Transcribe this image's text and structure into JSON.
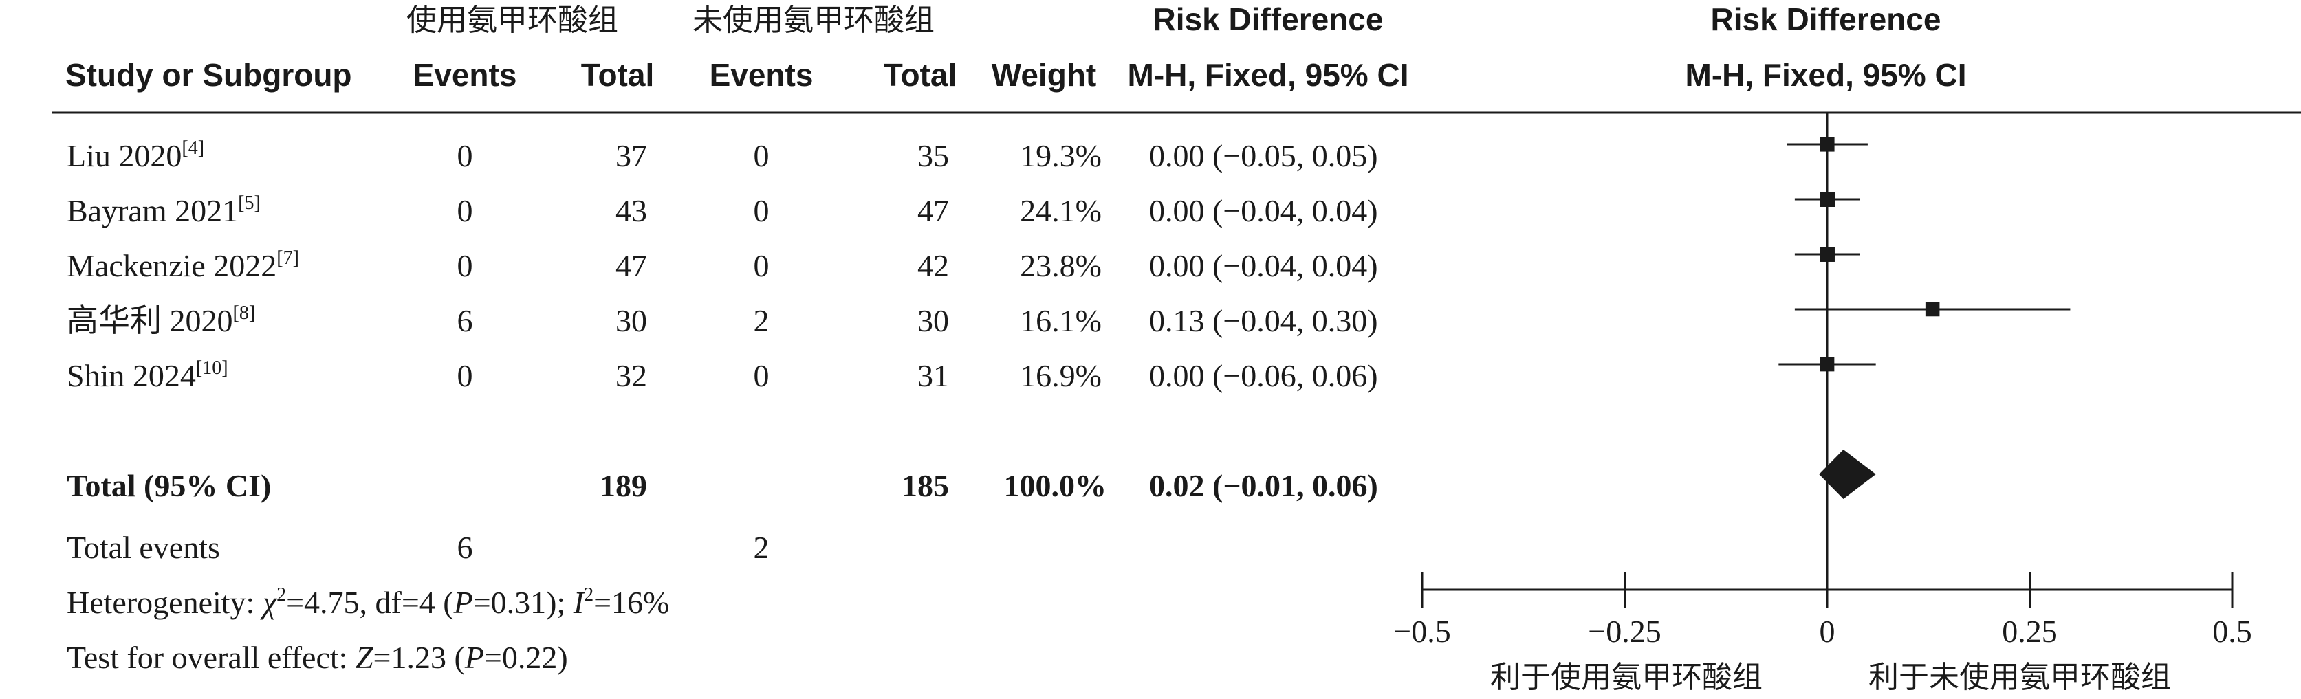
{
  "header": {
    "group1": "使用氨甲环酸组",
    "group2": "未使用氨甲环酸组",
    "effect_title": "Risk Difference",
    "effect_method": "M-H, Fixed, 95% CI",
    "plot_title": "Risk Difference",
    "plot_method": "M-H, Fixed, 95% CI",
    "col_study": "Study or Subgroup",
    "col_events1": "Events",
    "col_total1": "Total",
    "col_events2": "Events",
    "col_total2": "Total",
    "col_weight": "Weight"
  },
  "chart_data": {
    "type": "forest",
    "studies": [
      {
        "name": "Liu 2020",
        "ref": "[4]",
        "events1": "0",
        "total1": "37",
        "events2": "0",
        "total2": "35",
        "weight": "19.3%",
        "ci_text": "0.00 (−0.05, 0.05)",
        "rd": 0.0,
        "lo": -0.05,
        "hi": 0.05,
        "w": 19.3
      },
      {
        "name": "Bayram 2021",
        "ref": "[5]",
        "events1": "0",
        "total1": "43",
        "events2": "0",
        "total2": "47",
        "weight": "24.1%",
        "ci_text": "0.00 (−0.04, 0.04)",
        "rd": 0.0,
        "lo": -0.04,
        "hi": 0.04,
        "w": 24.1
      },
      {
        "name": "Mackenzie 2022",
        "ref": "[7]",
        "events1": "0",
        "total1": "47",
        "events2": "0",
        "total2": "42",
        "weight": "23.8%",
        "ci_text": "0.00 (−0.04, 0.04)",
        "rd": 0.0,
        "lo": -0.04,
        "hi": 0.04,
        "w": 23.8
      },
      {
        "name": "高华利 2020",
        "ref": "[8]",
        "events1": "6",
        "total1": "30",
        "events2": "2",
        "total2": "30",
        "weight": "16.1%",
        "ci_text": "0.13 (−0.04, 0.30)",
        "rd": 0.13,
        "lo": -0.04,
        "hi": 0.3,
        "w": 16.1
      },
      {
        "name": "Shin 2024",
        "ref": "[10]",
        "events1": "0",
        "total1": "32",
        "events2": "0",
        "total2": "31",
        "weight": "16.9%",
        "ci_text": "0.00 (−0.06, 0.06)",
        "rd": 0.0,
        "lo": -0.06,
        "hi": 0.06,
        "w": 16.9
      }
    ],
    "total": {
      "label": "Total (95% CI)",
      "total1": "189",
      "total2": "185",
      "weight": "100.0%",
      "ci_text": "0.02 (−0.01, 0.06)",
      "rd": 0.02,
      "lo": -0.01,
      "hi": 0.06
    },
    "total_events": {
      "label": "Total events",
      "events1": "6",
      "events2": "2"
    },
    "heterogeneity": {
      "prefix": "Heterogeneity: ",
      "chi": "χ",
      "chi_value": "=4.75, df=4 (",
      "p": "P",
      "p_value": "=0.31); ",
      "i": "I",
      "i_value": "=16%"
    },
    "overall": {
      "prefix": "Test for overall effect: ",
      "z": "Z",
      "z_value": "=1.23 (",
      "p": "P",
      "p_value": "=0.22)"
    },
    "axis": {
      "min": -0.5,
      "max": 0.5,
      "ticks": [
        -0.5,
        -0.25,
        0,
        0.25,
        0.5
      ],
      "tick_labels": [
        "−0.5",
        "−0.25",
        "0",
        "0.25",
        "0.5"
      ]
    },
    "favours_left": "利于使用氨甲环酸组",
    "favours_right": "利于未使用氨甲环酸组"
  }
}
